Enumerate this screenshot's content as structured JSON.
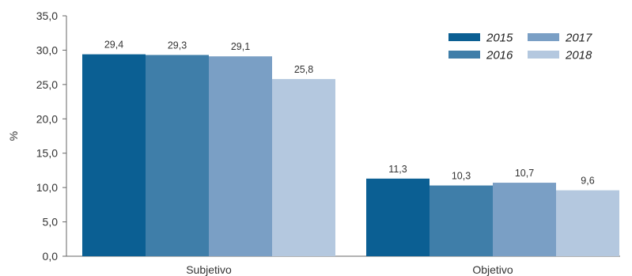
{
  "chart_data": {
    "type": "bar",
    "categories": [
      "Subjetivo",
      "Objetivo"
    ],
    "series": [
      {
        "name": "2015",
        "values": [
          29.4,
          11.3
        ],
        "color": "#0b5f93"
      },
      {
        "name": "2016",
        "values": [
          29.3,
          10.3
        ],
        "color": "#3f7ea9"
      },
      {
        "name": "2017",
        "values": [
          29.1,
          10.7
        ],
        "color": "#7a9fc5"
      },
      {
        "name": "2018",
        "values": [
          25.8,
          9.6
        ],
        "color": "#b4c8df"
      }
    ],
    "data_labels": [
      [
        "29,4",
        "11,3"
      ],
      [
        "29,3",
        "10,3"
      ],
      [
        "29,1",
        "10,7"
      ],
      [
        "25,8",
        "9,6"
      ]
    ],
    "ylabel": "%",
    "ylim": [
      0,
      35
    ],
    "yticks": [
      0,
      5,
      10,
      15,
      20,
      25,
      30,
      35
    ],
    "ytick_labels": [
      "0,0",
      "5,0",
      "10,0",
      "15,0",
      "20,0",
      "25,0",
      "30,0",
      "35,0"
    ],
    "legend_position": "top-right",
    "legend_columns": 2,
    "grid": false
  }
}
